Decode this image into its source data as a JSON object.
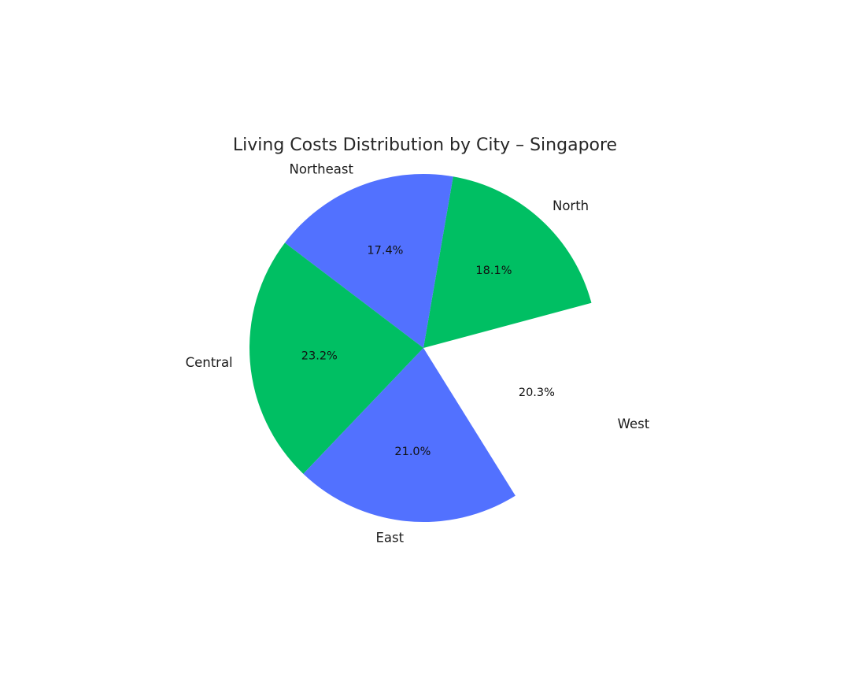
{
  "chart_data": {
    "type": "pie",
    "title": "Living Costs Distribution by City – Singapore",
    "slices": [
      {
        "label": "North",
        "value": 18.1,
        "pct_label": "18.1%",
        "color": "#00BF63",
        "exploded": false
      },
      {
        "label": "Northeast",
        "value": 17.4,
        "pct_label": "17.4%",
        "color": "#5271FF",
        "exploded": false
      },
      {
        "label": "Central",
        "value": 23.2,
        "pct_label": "23.2%",
        "color": "#00BF63",
        "exploded": false
      },
      {
        "label": "East",
        "value": 21.0,
        "pct_label": "21.0%",
        "color": "#5271FF",
        "exploded": false
      },
      {
        "label": "West",
        "value": 20.3,
        "pct_label": "20.3%",
        "color": "#FFFFFF",
        "exploded": true
      }
    ],
    "start_angle_deg": 15,
    "direction": "counterclockwise",
    "legend": "none"
  }
}
